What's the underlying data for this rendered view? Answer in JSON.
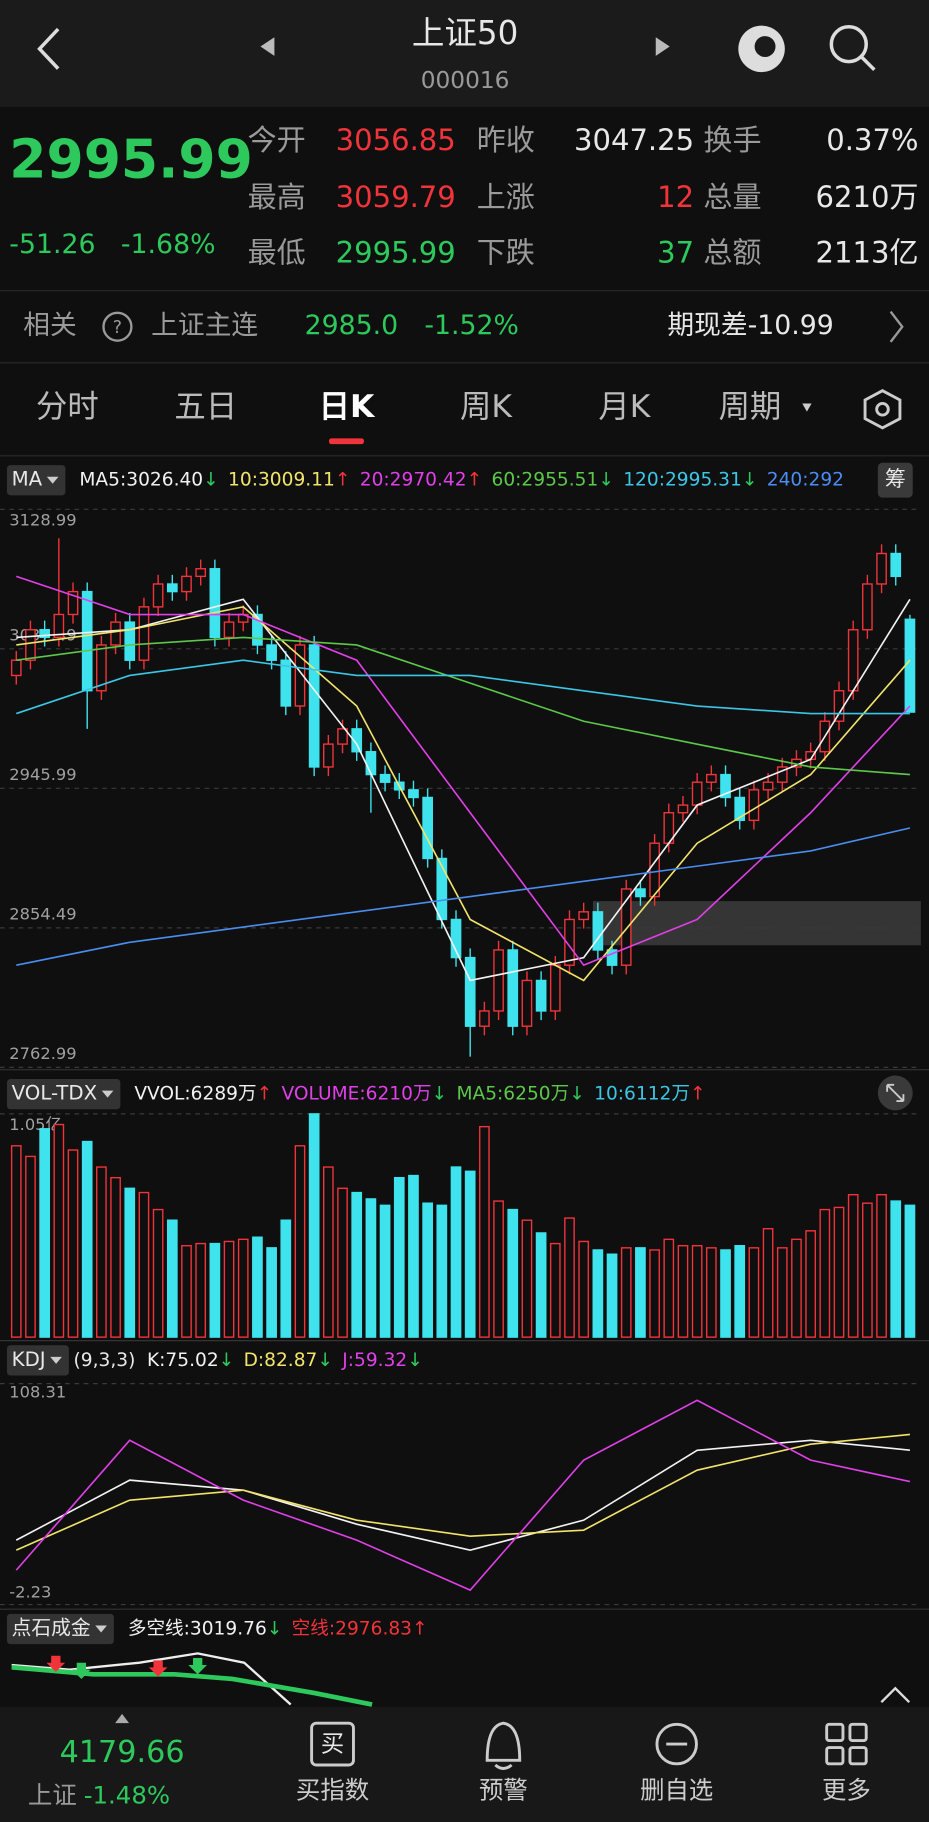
{
  "header": {
    "title": "上证50",
    "code": "000016"
  },
  "quote": {
    "price": "2995.99",
    "change": "-51.26",
    "change_pct": "-1.68%",
    "rows": [
      [
        [
          "今开",
          "3056.85"
        ],
        [
          "昨收",
          "3047.25"
        ],
        [
          "换手",
          "0.37%"
        ]
      ],
      [
        [
          "最高",
          "3059.79"
        ],
        [
          "上涨",
          "12"
        ],
        [
          "总量",
          "6210万"
        ]
      ],
      [
        [
          "最低",
          "2995.99"
        ],
        [
          "下跌",
          "37"
        ],
        [
          "总额",
          "2113亿"
        ]
      ]
    ]
  },
  "related": {
    "label": "相关",
    "name": "上证主连",
    "price": "2985.0",
    "pct": "-1.52%",
    "basis": "期现差-10.99"
  },
  "tabs": [
    "分时",
    "五日",
    "日K",
    "周K",
    "月K",
    "周期"
  ],
  "colors": {
    "up": "#f0343a",
    "down": "#2ec95c",
    "candle_up": "#f0343a",
    "candle_down": "#3fe3ee"
  },
  "chart_data": [
    {
      "type": "candlestick",
      "badge": "MA",
      "legend": [
        {
          "text": "MA5:3026.40",
          "arrow": "↓",
          "color": "#f2f2f2"
        },
        {
          "text": "10:3009.11",
          "arrow": "↑",
          "color": "#f2e36a"
        },
        {
          "text": "20:2970.42",
          "arrow": "↑",
          "color": "#e040e8"
        },
        {
          "text": "60:2955.51",
          "arrow": "↓",
          "color": "#5cc84a"
        },
        {
          "text": "120:2995.31",
          "arrow": "↓",
          "color": "#3cc6e6"
        },
        {
          "text": "240:292",
          "arrow": "",
          "color": "#4a8cf0"
        }
      ],
      "ylim": [
        2762.99,
        3128.99
      ],
      "yticks": [
        3128.99,
        3037.49,
        2945.99,
        2854.49,
        2762.99
      ],
      "ohlc": [
        [
          3020,
          3036,
          3014,
          3030
        ],
        [
          3030,
          3056,
          3024,
          3050
        ],
        [
          3050,
          3056,
          3039,
          3045
        ],
        [
          3045,
          3110,
          3039,
          3060
        ],
        [
          3060,
          3081,
          3054,
          3075
        ],
        [
          3075,
          3081,
          2985,
          3010
        ],
        [
          3010,
          3046,
          3004,
          3040
        ],
        [
          3040,
          3061,
          3034,
          3055
        ],
        [
          3055,
          3061,
          3024,
          3030
        ],
        [
          3030,
          3071,
          3024,
          3065
        ],
        [
          3065,
          3086,
          3059,
          3080
        ],
        [
          3080,
          3086,
          3069,
          3075
        ],
        [
          3075,
          3091,
          3069,
          3085
        ],
        [
          3085,
          3096,
          3079,
          3090
        ],
        [
          3090,
          3096,
          3039,
          3045
        ],
        [
          3045,
          3061,
          3039,
          3055
        ],
        [
          3055,
          3066,
          3049,
          3060
        ],
        [
          3060,
          3066,
          3034,
          3040
        ],
        [
          3040,
          3046,
          3024,
          3030
        ],
        [
          3030,
          3036,
          2994,
          3000
        ],
        [
          3000,
          3046,
          2994,
          3040
        ],
        [
          3040,
          3046,
          2954,
          2960
        ],
        [
          2960,
          2981,
          2954,
          2975
        ],
        [
          2975,
          2991,
          2969,
          2985
        ],
        [
          2985,
          2991,
          2964,
          2970
        ],
        [
          2970,
          2976,
          2930,
          2955
        ],
        [
          2955,
          2961,
          2944,
          2950
        ],
        [
          2950,
          2956,
          2939,
          2945
        ],
        [
          2945,
          2951,
          2934,
          2940
        ],
        [
          2940,
          2946,
          2894,
          2900
        ],
        [
          2900,
          2906,
          2854,
          2860
        ],
        [
          2860,
          2866,
          2829,
          2835
        ],
        [
          2835,
          2841,
          2770,
          2790
        ],
        [
          2790,
          2806,
          2784,
          2800
        ],
        [
          2800,
          2846,
          2794,
          2840
        ],
        [
          2840,
          2846,
          2784,
          2790
        ],
        [
          2790,
          2826,
          2784,
          2820
        ],
        [
          2820,
          2826,
          2794,
          2800
        ],
        [
          2800,
          2836,
          2794,
          2830
        ],
        [
          2830,
          2866,
          2824,
          2860
        ],
        [
          2860,
          2871,
          2854,
          2865
        ],
        [
          2865,
          2871,
          2834,
          2840
        ],
        [
          2840,
          2846,
          2824,
          2830
        ],
        [
          2830,
          2886,
          2824,
          2880
        ],
        [
          2880,
          2886,
          2869,
          2875
        ],
        [
          2875,
          2916,
          2869,
          2910
        ],
        [
          2910,
          2936,
          2904,
          2930
        ],
        [
          2930,
          2941,
          2924,
          2935
        ],
        [
          2935,
          2956,
          2929,
          2950
        ],
        [
          2950,
          2961,
          2944,
          2955
        ],
        [
          2955,
          2961,
          2934,
          2940
        ],
        [
          2940,
          2946,
          2919,
          2925
        ],
        [
          2925,
          2951,
          2919,
          2945
        ],
        [
          2945,
          2956,
          2939,
          2950
        ],
        [
          2950,
          2966,
          2944,
          2960
        ],
        [
          2960,
          2971,
          2954,
          2965
        ],
        [
          2965,
          2976,
          2959,
          2970
        ],
        [
          2970,
          2996,
          2964,
          2990
        ],
        [
          2990,
          3016,
          2984,
          3010
        ],
        [
          3010,
          3056,
          3004,
          3050
        ],
        [
          3050,
          3086,
          3044,
          3080
        ],
        [
          3080,
          3106,
          3074,
          3100
        ],
        [
          3100,
          3106,
          3079,
          3085
        ],
        [
          3056.85,
          3059.79,
          2995.99,
          2995.99
        ]
      ],
      "x": [
        0,
        8,
        16,
        24,
        32,
        40,
        48,
        56,
        63
      ],
      "series": [
        {
          "name": "MA5",
          "color": "#f2f2f2",
          "values": [
            3045,
            3050,
            3070,
            2975,
            2820,
            2835,
            2935,
            2965,
            3070
          ]
        },
        {
          "name": "MA10",
          "color": "#f2e36a",
          "values": [
            3040,
            3050,
            3065,
            3000,
            2860,
            2820,
            2910,
            2955,
            3030
          ]
        },
        {
          "name": "MA20",
          "color": "#e040e8",
          "values": [
            3085,
            3060,
            3060,
            3030,
            2930,
            2830,
            2860,
            2930,
            3000
          ]
        },
        {
          "name": "MA60",
          "color": "#5cc84a",
          "values": [
            3030,
            3040,
            3045,
            3040,
            3015,
            2990,
            2975,
            2960,
            2955
          ]
        },
        {
          "name": "MA120",
          "color": "#3cc6e6",
          "values": [
            2995,
            3020,
            3030,
            3020,
            3020,
            3010,
            3000,
            2995,
            2995
          ]
        },
        {
          "name": "MA240",
          "color": "#4a8cf0",
          "values": [
            2830,
            2845,
            2855,
            2865,
            2875,
            2885,
            2895,
            2905,
            2920
          ]
        }
      ]
    },
    {
      "type": "bar",
      "badge": "VOL-TDX",
      "legend": [
        {
          "text": "VVOL:6289万",
          "arrow": "↑",
          "color": "#f2f2f2"
        },
        {
          "text": "VOLUME:6210万",
          "arrow": "↓",
          "color": "#e040e8"
        },
        {
          "text": "MA5:6250万",
          "arrow": "↓",
          "color": "#5cc84a"
        },
        {
          "text": "10:6112万",
          "arrow": "↑",
          "color": "#3cc6e6"
        }
      ],
      "ylim": [
        0,
        10500
      ],
      "yticks": [
        {
          "value": 10500,
          "label": "1.05亿"
        }
      ],
      "values": [
        9000,
        8500,
        9800,
        10000,
        8800,
        9200,
        8000,
        7500,
        7000,
        6800,
        6000,
        5500,
        4300,
        4400,
        4400,
        4500,
        4600,
        4700,
        4200,
        5500,
        9000,
        10500,
        8000,
        7000,
        6800,
        6500,
        6200,
        7500,
        7600,
        6300,
        6200,
        8000,
        7800,
        9900,
        6400,
        6000,
        5500,
        4900,
        4400,
        5600,
        4500,
        4100,
        3900,
        4200,
        4200,
        4100,
        4600,
        4300,
        4300,
        4200,
        4100,
        4300,
        4200,
        5100,
        4200,
        4600,
        5000,
        6000,
        6100,
        6700,
        6300,
        6700,
        6400,
        6200
      ]
    },
    {
      "type": "line",
      "badge": "KDJ",
      "params": "(9,3,3)",
      "legend": [
        {
          "text": "K:75.02",
          "arrow": "↓",
          "color": "#f2f2f2"
        },
        {
          "text": "D:82.87",
          "arrow": "↓",
          "color": "#f2e36a"
        },
        {
          "text": "J:59.32",
          "arrow": "↓",
          "color": "#e040e8"
        }
      ],
      "ylim": [
        -2.23,
        108.31
      ],
      "yticks": [
        108.31,
        -2.23
      ],
      "x": [
        0,
        8,
        16,
        24,
        32,
        40,
        48,
        56,
        63
      ],
      "series": [
        {
          "name": "K",
          "color": "#f2f2f2",
          "values": [
            30,
            60,
            55,
            38,
            25,
            40,
            75,
            80,
            75.02
          ]
        },
        {
          "name": "D",
          "color": "#f2e36a",
          "values": [
            25,
            50,
            55,
            40,
            32,
            35,
            65,
            78,
            82.87
          ]
        },
        {
          "name": "J",
          "color": "#e040e8",
          "values": [
            15,
            80,
            50,
            30,
            5,
            70,
            100,
            70,
            59.32
          ]
        }
      ]
    }
  ],
  "indicator": {
    "badge": "点石成金",
    "legend": [
      {
        "text": "多空线:3019.76",
        "arrow": "↓",
        "color": "#f2f2f2"
      },
      {
        "text": "空线:2976.83",
        "arrow": "↑",
        "color": "#f0343a"
      }
    ]
  },
  "footer": {
    "index_price": "4179.66",
    "index_name": "上证",
    "index_pct": "-1.48%",
    "buttons": [
      "买指数",
      "预警",
      "删自选",
      "更多"
    ],
    "buy_icon": "买"
  }
}
